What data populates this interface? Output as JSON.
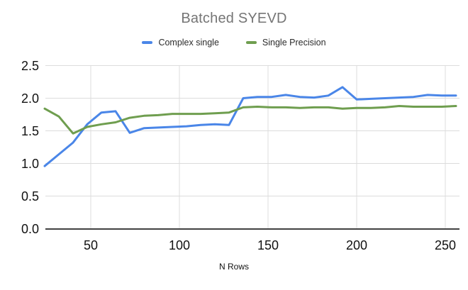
{
  "chart_data": {
    "type": "line",
    "title": "Batched SYEVD",
    "xlabel": "N Rows",
    "legend_position": "top",
    "grid": true,
    "xlim": [
      24,
      256
    ],
    "ylim": [
      0,
      2.5
    ],
    "x_ticks": [
      50,
      100,
      150,
      200,
      250
    ],
    "y_tick_labels": [
      "0.0",
      "0.5",
      "1.0",
      "1.5",
      "2.0",
      "2.5"
    ],
    "x": [
      24,
      32,
      40,
      48,
      56,
      64,
      72,
      80,
      88,
      96,
      104,
      112,
      120,
      128,
      136,
      144,
      152,
      160,
      168,
      176,
      184,
      192,
      200,
      208,
      216,
      224,
      232,
      240,
      248,
      256
    ],
    "series": [
      {
        "name": "Complex single",
        "color": "#4a86e8",
        "values": [
          0.96,
          1.14,
          1.32,
          1.6,
          1.78,
          1.8,
          1.47,
          1.54,
          1.55,
          1.56,
          1.57,
          1.59,
          1.6,
          1.59,
          2.0,
          2.02,
          2.02,
          2.05,
          2.02,
          2.01,
          2.04,
          2.17,
          1.98,
          1.99,
          2.0,
          2.01,
          2.02,
          2.05,
          2.04,
          2.04
        ]
      },
      {
        "name": "Single Precision",
        "color": "#6f9e4f",
        "values": [
          1.84,
          1.72,
          1.46,
          1.56,
          1.6,
          1.63,
          1.7,
          1.73,
          1.74,
          1.76,
          1.76,
          1.76,
          1.77,
          1.78,
          1.86,
          1.87,
          1.86,
          1.86,
          1.85,
          1.86,
          1.86,
          1.84,
          1.85,
          1.85,
          1.86,
          1.88,
          1.87,
          1.87,
          1.87,
          1.88
        ]
      }
    ],
    "colors": {
      "title": "#757575",
      "tick_label": "#111111",
      "legend_text": "#2b2b2b",
      "axis_line": "#424242",
      "gridline": "#dcdcdc",
      "background": "#ffffff"
    }
  }
}
